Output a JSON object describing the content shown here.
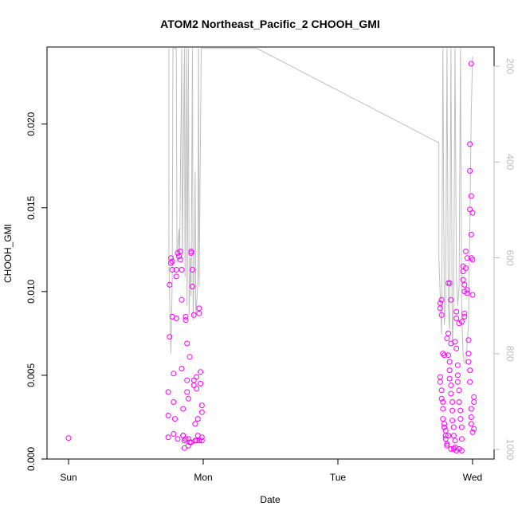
{
  "chart_data": {
    "type": "scatter",
    "title": "ATOM2 Northeast_Pacific_2 CHOOH_GMI",
    "xlabel": "Date",
    "ylabel": "CHOOH_GMI",
    "x_ticks": [
      {
        "day": 0,
        "label": "Sun"
      },
      {
        "day": 1,
        "label": "Mon"
      },
      {
        "day": 2,
        "label": "Tue"
      },
      {
        "day": 3,
        "label": "Wed"
      }
    ],
    "xlim": [
      -0.16,
      3.16
    ],
    "ylim": [
      0.0,
      0.0246
    ],
    "y_ticks": [
      0.0,
      0.005,
      0.01,
      0.015,
      0.02
    ],
    "y_tick_labels": [
      "0.000",
      "0.005",
      "0.010",
      "0.015",
      "0.020"
    ],
    "y2_ticks": [
      200,
      400,
      600,
      800,
      1000
    ],
    "y2_tick_labels": [
      "200",
      "400",
      "600",
      "800",
      "1000"
    ],
    "y2lim": [
      1020,
      160
    ],
    "point_color": "#ff00ff",
    "line_color": "#bebebe",
    "series": [
      {
        "kind": "points",
        "data": [
          [
            0.0,
            0.00125
          ],
          [
            0.75,
            0.0073
          ],
          [
            0.74,
            0.0026
          ],
          [
            0.74,
            0.004
          ],
          [
            0.75,
            0.0104
          ],
          [
            0.76,
            0.012
          ],
          [
            0.76,
            0.0117
          ],
          [
            0.77,
            0.0118
          ],
          [
            0.77,
            0.0113
          ],
          [
            0.77,
            0.0085
          ],
          [
            0.78,
            0.0051
          ],
          [
            0.78,
            0.0034
          ],
          [
            0.79,
            0.0024
          ],
          [
            0.8,
            0.0084
          ],
          [
            0.8,
            0.0109
          ],
          [
            0.8,
            0.0113
          ],
          [
            0.81,
            0.0123
          ],
          [
            0.82,
            0.0121
          ],
          [
            0.83,
            0.0124
          ],
          [
            0.83,
            0.0119
          ],
          [
            0.84,
            0.0113
          ],
          [
            0.84,
            0.0095
          ],
          [
            0.84,
            0.0054
          ],
          [
            0.85,
            0.003
          ],
          [
            0.85,
            0.0014
          ],
          [
            0.86,
            0.0011
          ],
          [
            0.86,
            0.00065
          ],
          [
            0.87,
            0.0085
          ],
          [
            0.87,
            0.0083
          ],
          [
            0.88,
            0.0069
          ],
          [
            0.88,
            0.0047
          ],
          [
            0.88,
            0.004
          ],
          [
            0.89,
            0.0036
          ],
          [
            0.89,
            0.0008
          ],
          [
            0.9,
            0.001
          ],
          [
            0.9,
            0.0061
          ],
          [
            0.91,
            0.0124
          ],
          [
            0.91,
            0.0123
          ],
          [
            0.92,
            0.0113
          ],
          [
            0.92,
            0.0103
          ],
          [
            0.93,
            0.0086
          ],
          [
            0.93,
            0.0047
          ],
          [
            0.93,
            0.0044
          ],
          [
            0.94,
            0.0021
          ],
          [
            0.94,
            0.0011
          ],
          [
            0.95,
            0.0049
          ],
          [
            0.95,
            0.0042
          ],
          [
            0.96,
            0.0024
          ],
          [
            0.96,
            0.0014
          ],
          [
            0.97,
            0.009
          ],
          [
            0.97,
            0.0087
          ],
          [
            0.98,
            0.0052
          ],
          [
            0.98,
            0.0045
          ],
          [
            0.99,
            0.0032
          ],
          [
            0.99,
            0.0028
          ],
          [
            0.99,
            0.0013
          ],
          [
            0.99,
            0.0011
          ],
          [
            0.74,
            0.0013
          ],
          [
            0.78,
            0.0015
          ],
          [
            0.81,
            0.0012
          ],
          [
            0.85,
            0.0014
          ],
          [
            0.87,
            0.0012
          ],
          [
            0.89,
            0.0012
          ],
          [
            0.91,
            0.001
          ],
          [
            0.95,
            0.0011
          ],
          [
            0.97,
            0.0011
          ],
          [
            2.76,
            0.0093
          ],
          [
            2.76,
            0.009
          ],
          [
            2.77,
            0.0095
          ],
          [
            2.77,
            0.0086
          ],
          [
            2.76,
            0.0049
          ],
          [
            2.76,
            0.0046
          ],
          [
            2.77,
            0.0041
          ],
          [
            2.77,
            0.0036
          ],
          [
            2.78,
            0.0034
          ],
          [
            2.78,
            0.003
          ],
          [
            2.78,
            0.0024
          ],
          [
            2.79,
            0.0021
          ],
          [
            2.79,
            0.0019
          ],
          [
            2.8,
            0.0017
          ],
          [
            2.8,
            0.0014
          ],
          [
            2.8,
            0.0012
          ],
          [
            2.81,
            0.0009
          ],
          [
            2.81,
            0.0008
          ],
          [
            2.82,
            0.0105
          ],
          [
            2.82,
            0.0075
          ],
          [
            2.82,
            0.0062
          ],
          [
            2.83,
            0.0058
          ],
          [
            2.83,
            0.0053
          ],
          [
            2.83,
            0.0048
          ],
          [
            2.84,
            0.0044
          ],
          [
            2.84,
            0.0039
          ],
          [
            2.85,
            0.0034
          ],
          [
            2.85,
            0.0029
          ],
          [
            2.85,
            0.0023
          ],
          [
            2.86,
            0.0019
          ],
          [
            2.86,
            0.0014
          ],
          [
            2.87,
            0.0011
          ],
          [
            2.87,
            0.0007
          ],
          [
            2.88,
            0.0088
          ],
          [
            2.88,
            0.0084
          ],
          [
            2.88,
            0.0066
          ],
          [
            2.89,
            0.0056
          ],
          [
            2.89,
            0.005
          ],
          [
            2.89,
            0.0046
          ],
          [
            2.9,
            0.0041
          ],
          [
            2.9,
            0.0034
          ],
          [
            2.91,
            0.0029
          ],
          [
            2.91,
            0.0024
          ],
          [
            2.92,
            0.0019
          ],
          [
            2.92,
            0.0012
          ],
          [
            2.93,
            0.0115
          ],
          [
            2.93,
            0.0112
          ],
          [
            2.93,
            0.0107
          ],
          [
            2.94,
            0.0104
          ],
          [
            2.94,
            0.01
          ],
          [
            2.94,
            0.0087
          ],
          [
            2.95,
            0.0124
          ],
          [
            2.95,
            0.0114
          ],
          [
            2.96,
            0.012
          ],
          [
            2.96,
            0.0101
          ],
          [
            2.97,
            0.0071
          ],
          [
            2.97,
            0.0063
          ],
          [
            2.97,
            0.0058
          ],
          [
            2.98,
            0.0053
          ],
          [
            2.98,
            0.0046
          ],
          [
            2.99,
            0.003
          ],
          [
            2.99,
            0.0025
          ],
          [
            2.99,
            0.0021
          ],
          [
            3.0,
            0.0016
          ],
          [
            2.98,
            0.0188
          ],
          [
            2.98,
            0.0172
          ],
          [
            2.98,
            0.0149
          ],
          [
            2.99,
            0.0157
          ],
          [
            2.99,
            0.0134
          ],
          [
            2.99,
            0.012
          ],
          [
            3.0,
            0.0147
          ],
          [
            3.0,
            0.0098
          ],
          [
            3.01,
            0.0037
          ],
          [
            3.01,
            0.0034
          ],
          [
            3.01,
            0.0018
          ],
          [
            3.0,
            0.0119
          ],
          [
            2.99,
            0.0236
          ],
          [
            2.96,
            0.0099
          ],
          [
            2.94,
            0.0085
          ],
          [
            2.92,
            0.0082
          ],
          [
            2.9,
            0.0081
          ],
          [
            2.87,
            0.007
          ],
          [
            2.84,
            0.0095
          ],
          [
            2.81,
            0.0072
          ],
          [
            2.79,
            0.0062
          ],
          [
            2.83,
            0.0105
          ],
          [
            2.78,
            0.0063
          ],
          [
            2.84,
            0.0069
          ],
          [
            2.86,
            0.0006
          ],
          [
            2.88,
            0.0005
          ],
          [
            2.9,
            0.0006
          ],
          [
            2.92,
            0.0005
          ],
          [
            2.84,
            0.0006
          ],
          [
            2.82,
            0.0014
          ]
        ]
      },
      {
        "kind": "line",
        "data": [
          [
            0.745,
            163
          ],
          [
            0.745,
            610
          ],
          [
            0.76,
            800
          ],
          [
            0.77,
            650
          ],
          [
            0.775,
            163
          ],
          [
            0.8,
            163
          ],
          [
            0.805,
            610
          ],
          [
            0.82,
            540
          ],
          [
            0.825,
            600
          ],
          [
            0.84,
            163
          ],
          [
            0.845,
            600
          ],
          [
            0.86,
            163
          ],
          [
            0.865,
            640
          ],
          [
            0.875,
            163
          ],
          [
            0.88,
            700
          ],
          [
            0.89,
            163
          ],
          [
            0.895,
            720
          ],
          [
            0.905,
            600
          ],
          [
            0.91,
            680
          ],
          [
            0.92,
            163
          ],
          [
            0.925,
            730
          ],
          [
            0.935,
            600
          ],
          [
            0.94,
            420
          ],
          [
            0.945,
            720
          ],
          [
            0.955,
            680
          ],
          [
            0.96,
            640
          ],
          [
            0.965,
            163
          ],
          [
            0.97,
            660
          ],
          [
            0.985,
            163
          ],
          [
            1.4,
            163
          ],
          [
            2.75,
            360
          ],
          [
            2.75,
            600
          ],
          [
            2.76,
            680
          ],
          [
            2.77,
            760
          ],
          [
            2.78,
            163
          ],
          [
            2.79,
            740
          ],
          [
            2.8,
            700
          ],
          [
            2.81,
            163
          ],
          [
            2.82,
            700
          ],
          [
            2.83,
            750
          ],
          [
            2.84,
            163
          ],
          [
            2.85,
            780
          ],
          [
            2.86,
            700
          ],
          [
            2.87,
            163
          ],
          [
            2.88,
            640
          ],
          [
            2.89,
            700
          ],
          [
            2.9,
            660
          ],
          [
            2.91,
            163
          ],
          [
            2.92,
            720
          ],
          [
            2.93,
            800
          ],
          [
            2.94,
            820
          ],
          [
            2.95,
            820
          ],
          [
            2.96,
            780
          ],
          [
            2.97,
            740
          ],
          [
            2.98,
            530
          ],
          [
            2.99,
            300
          ],
          [
            3.0,
            180
          ]
        ]
      }
    ]
  }
}
